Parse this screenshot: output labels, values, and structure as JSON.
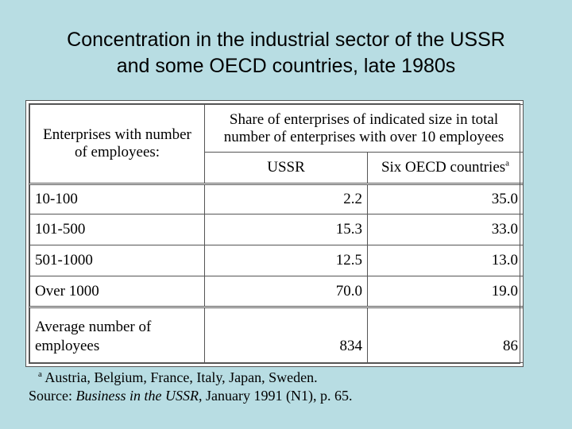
{
  "slide": {
    "title_line1": "Concentration in the industrial sector of the USSR",
    "title_line2": "and some OECD countries, late 1980s"
  },
  "table": {
    "col1_header": "Enterprises with number of employees:",
    "group_header": "Share of enterprises of indicated size in total number of enterprises with over 10 employees",
    "col_ussr": "USSR",
    "col_oecd": "Six OECD countries",
    "col_oecd_sup": "a",
    "rows": [
      {
        "label": "10-100",
        "ussr": "2.2",
        "oecd": "35.0"
      },
      {
        "label": "101-500",
        "ussr": "15.3",
        "oecd": "33.0"
      },
      {
        "label": "501-1000",
        "ussr": "12.5",
        "oecd": "13.0"
      },
      {
        "label": "Over 1000",
        "ussr": "70.0",
        "oecd": "19.0"
      }
    ],
    "avg_row": {
      "label_line1": "Average number of",
      "label_line2": "employees",
      "ussr": "834",
      "oecd": "86"
    }
  },
  "notes": {
    "footnote_mark": "a",
    "footnote_text": " Austria, Belgium, France, Italy, Japan, Sweden.",
    "source_prefix": "Source: ",
    "source_title": "Business in the USSR",
    "source_rest": ", January 1991 (N1), p. 65."
  }
}
